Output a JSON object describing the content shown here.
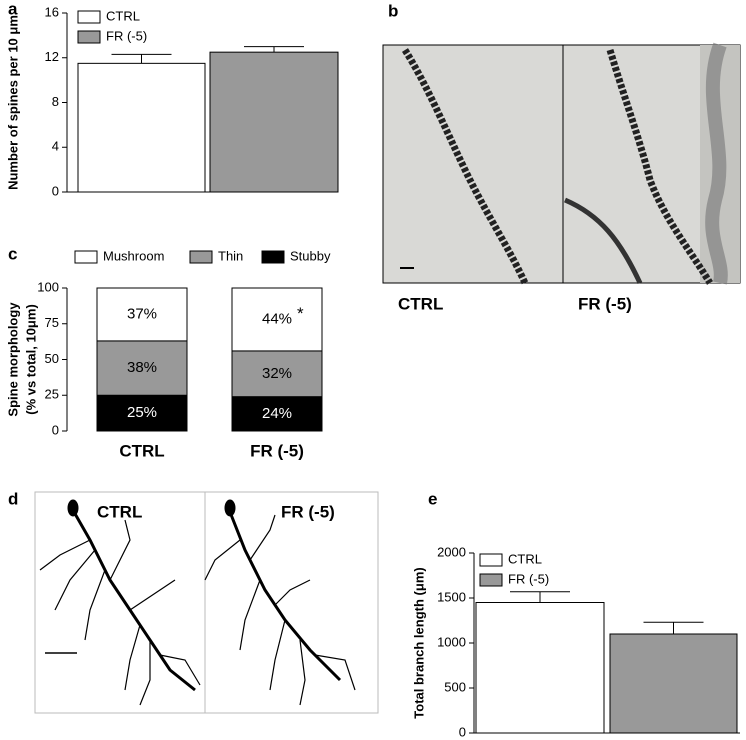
{
  "chart_data": [
    {
      "type": "bar",
      "panel": "a",
      "ylabel": "Number of spines per 10 μm",
      "series": [
        {
          "name": "CTRL",
          "color": "#ffffff",
          "values": [
            11.5
          ],
          "errors": [
            0.8
          ]
        },
        {
          "name": "FR (-5)",
          "color": "#999999",
          "values": [
            12.5
          ],
          "errors": [
            0.5
          ]
        }
      ],
      "ylim": [
        0,
        16
      ],
      "yticks": [
        0,
        4,
        8,
        12,
        16
      ]
    },
    {
      "type": "stacked_bar",
      "panel": "c",
      "ylabel": [
        "Spine morphology",
        "(% vs total, 10μm)"
      ],
      "categories": [
        "CTRL",
        "FR (-5)"
      ],
      "series": [
        {
          "name": "Stubby",
          "color": "#000000",
          "values": [
            25,
            24
          ],
          "value_labels": [
            "25%",
            "24%"
          ]
        },
        {
          "name": "Thin",
          "color": "#999999",
          "values": [
            38,
            32
          ],
          "value_labels": [
            "38%",
            "32%"
          ]
        },
        {
          "name": "Mushroom",
          "color": "#ffffff",
          "values": [
            37,
            44
          ],
          "value_labels": [
            "37%",
            "44%"
          ]
        }
      ],
      "annotation": "*",
      "ylim": [
        0,
        100
      ],
      "yticks": [
        0,
        25,
        50,
        75,
        100
      ]
    },
    {
      "type": "bar",
      "panel": "e",
      "ylabel": "Total branch length (μm)",
      "series": [
        {
          "name": "CTRL",
          "color": "#ffffff",
          "values": [
            1450
          ],
          "errors": [
            120
          ]
        },
        {
          "name": "FR (-5)",
          "color": "#999999",
          "values": [
            1100
          ],
          "errors": [
            130
          ]
        }
      ],
      "ylim": [
        0,
        2000
      ],
      "yticks": [
        0,
        500,
        1000,
        1500,
        2000
      ]
    }
  ],
  "image_panels": [
    {
      "panel": "b",
      "labels": [
        "CTRL",
        "FR (-5)"
      ]
    },
    {
      "panel": "d",
      "labels": [
        "CTRL",
        "FR (-5)"
      ]
    }
  ]
}
